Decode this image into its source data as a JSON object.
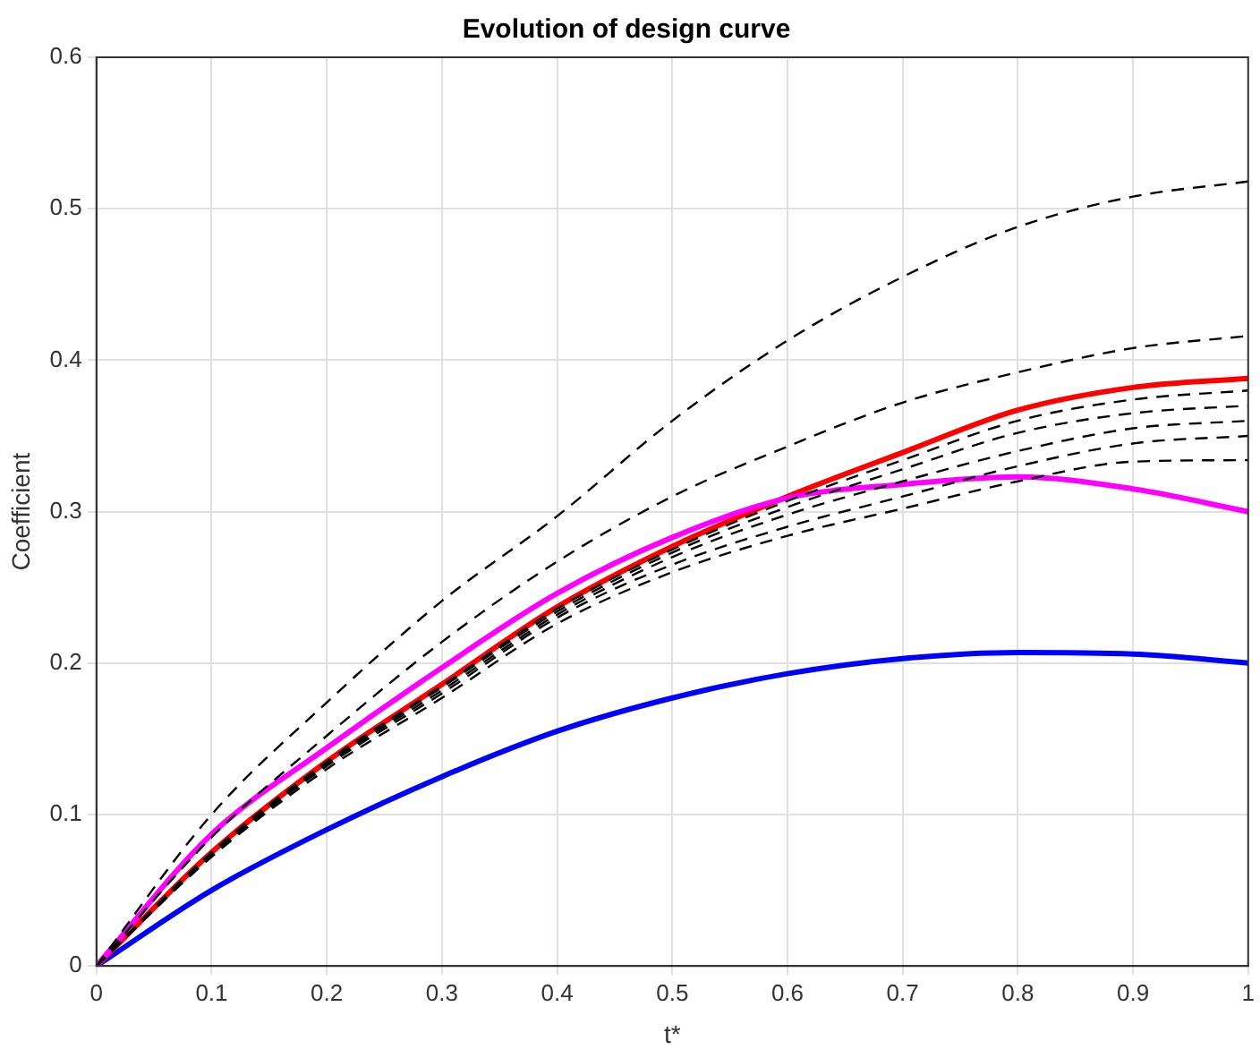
{
  "chart_data": {
    "type": "line",
    "title": "Evolution of design curve",
    "xlabel": "t*",
    "ylabel": "Coefficient",
    "x": [
      0,
      0.1,
      0.2,
      0.3,
      0.4,
      0.5,
      0.6,
      0.7,
      0.8,
      0.9,
      1
    ],
    "xlim": [
      0,
      1
    ],
    "xticks": [
      0,
      0.1,
      0.2,
      0.3,
      0.4,
      0.5,
      0.6,
      0.7,
      0.8,
      0.9,
      1
    ],
    "ylim": [
      0,
      0.6
    ],
    "yticks": [
      0,
      0.1,
      0.2,
      0.3,
      0.4,
      0.5,
      0.6
    ],
    "grid": true,
    "legend": false,
    "marker": "none",
    "series": [
      {
        "color": "#000000",
        "line_style": "dashed",
        "values": [
          0,
          0.1,
          0.174,
          0.241,
          0.297,
          0.36,
          0.413,
          0.455,
          0.488,
          0.508,
          0.518
        ]
      },
      {
        "color": "#000000",
        "line_style": "dashed",
        "values": [
          0,
          0.085,
          0.152,
          0.214,
          0.267,
          0.31,
          0.343,
          0.372,
          0.392,
          0.408,
          0.416
        ]
      },
      {
        "color": "#000000",
        "line_style": "dashed",
        "values": [
          0,
          0.072,
          0.13,
          0.177,
          0.226,
          0.26,
          0.284,
          0.302,
          0.32,
          0.333,
          0.334
        ]
      },
      {
        "color": "#000000",
        "line_style": "dashed",
        "values": [
          0,
          0.073,
          0.132,
          0.18,
          0.23,
          0.265,
          0.29,
          0.31,
          0.33,
          0.345,
          0.35
        ]
      },
      {
        "color": "#000000",
        "line_style": "dashed",
        "values": [
          0,
          0.074,
          0.133,
          0.182,
          0.232,
          0.27,
          0.298,
          0.32,
          0.34,
          0.355,
          0.36
        ]
      },
      {
        "color": "#000000",
        "line_style": "dashed",
        "values": [
          0,
          0.075,
          0.134,
          0.184,
          0.234,
          0.273,
          0.303,
          0.328,
          0.352,
          0.365,
          0.37
        ]
      },
      {
        "color": "#000000",
        "line_style": "dashed",
        "values": [
          0,
          0.075,
          0.135,
          0.185,
          0.236,
          0.275,
          0.307,
          0.334,
          0.36,
          0.374,
          0.38
        ]
      },
      {
        "color": "#ff00ff",
        "line_style": "solid",
        "values": [
          0,
          0.087,
          0.144,
          0.197,
          0.246,
          0.283,
          0.309,
          0.318,
          0.323,
          0.315,
          0.3
        ]
      },
      {
        "color": "#ff0000",
        "line_style": "solid",
        "values": [
          0,
          0.075,
          0.135,
          0.186,
          0.237,
          0.277,
          0.31,
          0.339,
          0.367,
          0.382,
          0.388
        ]
      },
      {
        "color": "#0000ff",
        "line_style": "solid",
        "values": [
          0,
          0.05,
          0.09,
          0.125,
          0.155,
          0.177,
          0.193,
          0.203,
          0.207,
          0.206,
          0.2
        ]
      }
    ]
  }
}
